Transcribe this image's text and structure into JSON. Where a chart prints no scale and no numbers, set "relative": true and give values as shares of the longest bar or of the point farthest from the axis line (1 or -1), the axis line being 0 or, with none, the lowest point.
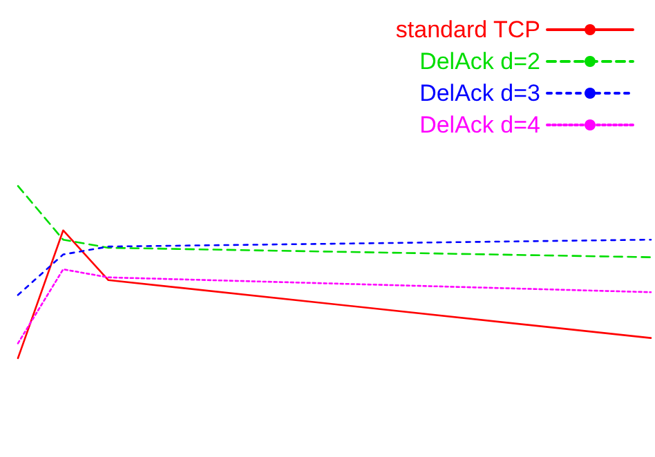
{
  "chart_data": {
    "type": "line",
    "relative": true,
    "legend": "top right",
    "grid": false,
    "marker": "none",
    "categories": [
      null,
      null,
      null,
      null,
      null,
      null,
      null,
      null,
      null,
      null,
      null,
      null,
      null,
      null,
      null
    ],
    "series": [
      {
        "name": "standard TCP",
        "color": "#ff0000",
        "line_style": "solid",
        "values": [
          0,
          0.742,
          0.453,
          null,
          null,
          null,
          null,
          null,
          null,
          null,
          null,
          null,
          null,
          null,
          0.117
        ]
      },
      {
        "name": "DelAck d=2",
        "color": "#00dd00",
        "line_style": "dashed",
        "values": [
          1,
          0.688,
          0.641,
          null,
          null,
          null,
          null,
          null,
          null,
          null,
          null,
          null,
          null,
          null,
          0.586
        ]
      },
      {
        "name": "DelAck d=3",
        "color": "#0000ff",
        "line_style": "dashed",
        "values": [
          0.367,
          0.602,
          0.648,
          null,
          null,
          null,
          null,
          null,
          null,
          null,
          null,
          null,
          null,
          null,
          0.688
        ]
      },
      {
        "name": "DelAck d=4",
        "color": "#ff00ff",
        "line_style": "dotted",
        "values": [
          0.086,
          0.516,
          0.469,
          null,
          null,
          null,
          null,
          null,
          null,
          null,
          null,
          null,
          null,
          null,
          0.383
        ]
      }
    ]
  }
}
